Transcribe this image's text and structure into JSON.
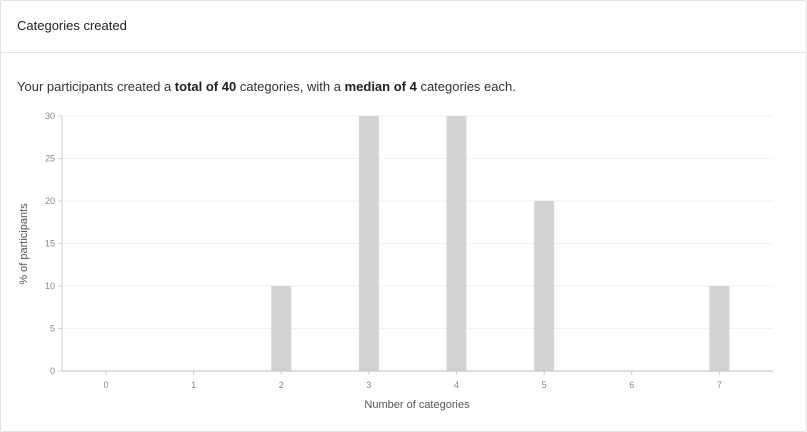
{
  "card": {
    "title": "Categories created"
  },
  "summary": {
    "prefix": "Your participants created a ",
    "total_label": "total of 40",
    "middle": " categories, with a ",
    "median_label": "median of 4",
    "suffix": " categories each."
  },
  "chart_data": {
    "type": "bar",
    "categories": [
      "0",
      "1",
      "2",
      "3",
      "4",
      "5",
      "6",
      "7"
    ],
    "values": [
      0,
      0,
      10,
      30,
      30,
      20,
      0,
      10
    ],
    "xlabel": "Number of categories",
    "ylabel": "% of participants",
    "ylim": [
      0,
      30
    ],
    "yticks": [
      0,
      5,
      10,
      15,
      20,
      25,
      30
    ],
    "grid": true,
    "bar_color": "#d3d3d3"
  }
}
